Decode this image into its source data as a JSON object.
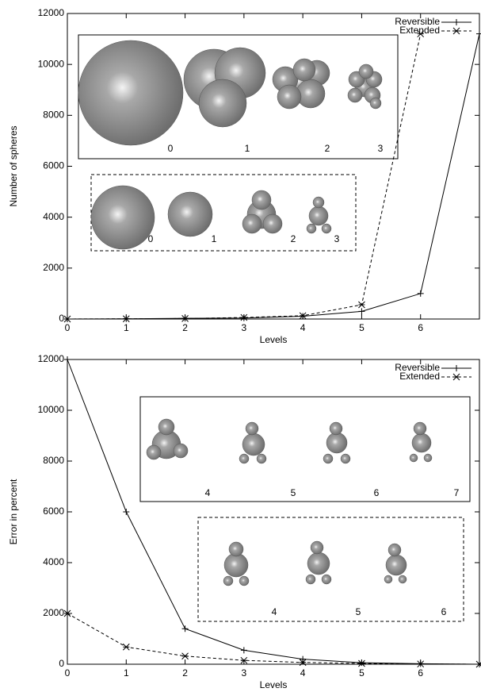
{
  "chart_data": [
    {
      "type": "line",
      "x_label": "Levels",
      "y_label": "Number of spheres",
      "x": [
        0,
        1,
        2,
        3,
        4,
        5,
        6,
        7
      ],
      "xlim": [
        0,
        7
      ],
      "xticks": [
        0,
        1,
        2,
        3,
        4,
        5,
        6
      ],
      "ylim": [
        0,
        12000
      ],
      "yticks": [
        0,
        2000,
        4000,
        6000,
        8000,
        10000,
        12000
      ],
      "legend": "upper right",
      "series": [
        {
          "name": "Reversible",
          "color": "#000000",
          "dash": "solid",
          "marker": "plus",
          "values": [
            1,
            8,
            27,
            40,
            110,
            300,
            1000,
            11200
          ]
        },
        {
          "name": "Extended",
          "color": "#000000",
          "dash": "dashed",
          "marker": "star",
          "values": [
            1,
            8,
            20,
            60,
            130,
            560,
            11200,
            null
          ]
        }
      ],
      "insets": [
        {
          "style": "solid",
          "labels": [
            "0",
            "1",
            "2",
            "3"
          ]
        },
        {
          "style": "dashed",
          "labels": [
            "0",
            "1",
            "2",
            "3"
          ]
        }
      ]
    },
    {
      "type": "line",
      "x_label": "Levels",
      "y_label": "Error in percent",
      "x": [
        0,
        1,
        2,
        3,
        4,
        5,
        6,
        7
      ],
      "xlim": [
        0,
        7
      ],
      "xticks": [
        0,
        1,
        2,
        3,
        4,
        5,
        6
      ],
      "ylim": [
        0,
        12000
      ],
      "yticks": [
        0,
        2000,
        4000,
        6000,
        8000,
        10000,
        12000
      ],
      "legend": "upper right",
      "series": [
        {
          "name": "Reversible",
          "color": "#000000",
          "dash": "solid",
          "marker": "plus",
          "values": [
            12000,
            6000,
            1400,
            550,
            200,
            60,
            20,
            0
          ]
        },
        {
          "name": "Extended",
          "color": "#000000",
          "dash": "dashed",
          "marker": "star",
          "values": [
            2000,
            680,
            320,
            150,
            70,
            30,
            10,
            0
          ]
        }
      ],
      "insets": [
        {
          "style": "solid",
          "labels": [
            "4",
            "5",
            "6",
            "7"
          ]
        },
        {
          "style": "dashed",
          "labels": [
            "4",
            "5",
            "6"
          ]
        }
      ]
    }
  ]
}
